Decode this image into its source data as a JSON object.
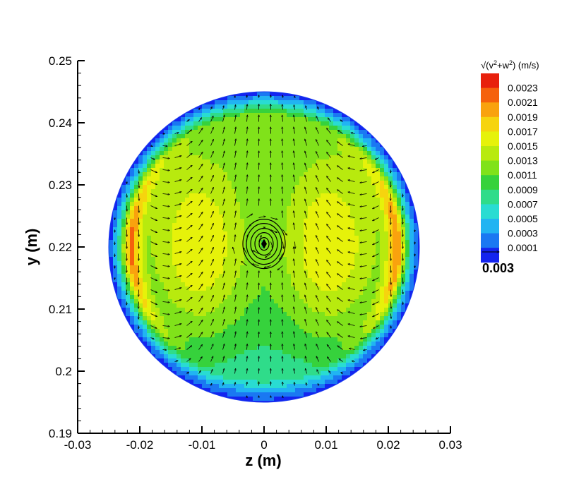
{
  "chart_data": {
    "type": "heatmap",
    "subtype": "contour-with-vector-field",
    "xlabel": "z  (m)",
    "ylabel": "y  (m)",
    "xlim": [
      -0.03,
      0.03
    ],
    "ylim": [
      0.19,
      0.25
    ],
    "x_ticks": [
      "-0.03",
      "-0.02",
      "-0.01",
      "0",
      "0.01",
      "0.02",
      "0.03"
    ],
    "x_tick_values": [
      -0.03,
      -0.02,
      -0.01,
      0,
      0.01,
      0.02,
      0.03
    ],
    "y_ticks": [
      "0.19",
      "0.2",
      "0.21",
      "0.22",
      "0.23",
      "0.24",
      "0.25"
    ],
    "y_tick_values": [
      0.19,
      0.2,
      0.21,
      0.22,
      0.23,
      0.24,
      0.25
    ],
    "domain": {
      "shape": "circle",
      "center_z": 0.0,
      "center_y": 0.22,
      "radius": 0.025
    },
    "vortex_center": {
      "z": 0.0,
      "y": 0.2205
    },
    "colorbar": {
      "label_prefix": "√(v",
      "label_mid": "+w",
      "label_suffix": ")  (m/s)",
      "label_exponent": "2",
      "levels": [
        "0.0023",
        "0.0021",
        "0.0019",
        "0.0017",
        "0.0015",
        "0.0013",
        "0.0011",
        "0.0009",
        "0.0007",
        "0.0005",
        "0.0003",
        "0.0001"
      ],
      "colors": [
        "#e8200c",
        "#f5610c",
        "#f9a20e",
        "#f6d40e",
        "#e6f20a",
        "#b8ea0e",
        "#80e21a",
        "#36d23c",
        "#2fdc8a",
        "#29dcd2",
        "#21b4f2",
        "#1a78f2",
        "#1424ef"
      ],
      "placement": "right"
    },
    "reference_vector": {
      "magnitude": "0.003"
    }
  }
}
